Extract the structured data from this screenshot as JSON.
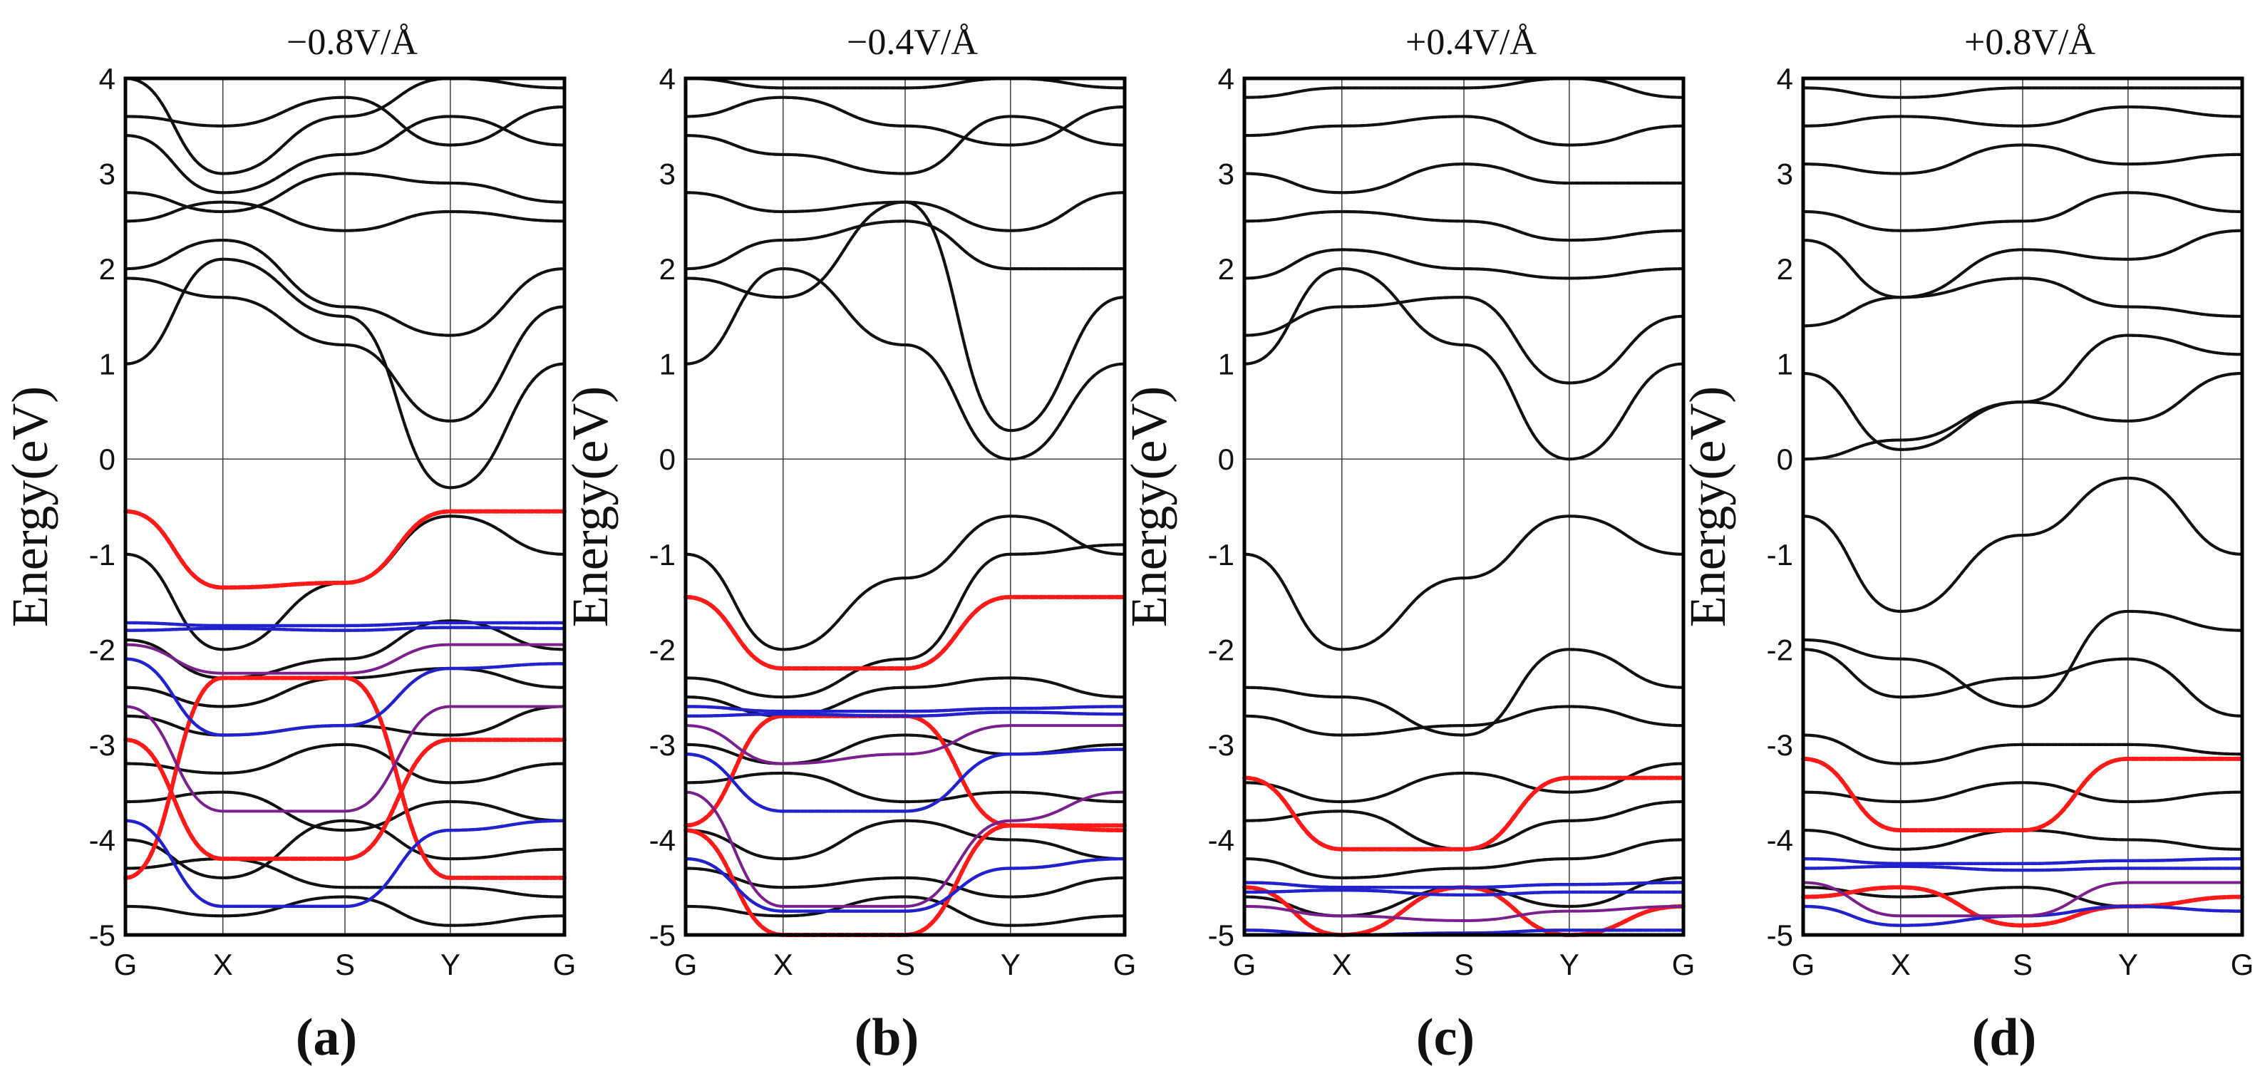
{
  "chart_data": [
    {
      "type": "line",
      "title": "−0.8V/Å",
      "label": "(a)",
      "ylabel": "Energy(eV)",
      "ylim": [
        -5,
        4
      ],
      "yticks": [
        4,
        3,
        2,
        1,
        0,
        -1,
        -2,
        -3,
        -4,
        -5
      ],
      "xticks": [
        "G",
        "X",
        "S",
        "Y",
        "G"
      ],
      "grid": true,
      "series": [
        {
          "color": "black",
          "y": [
            -1.0,
            -2.0,
            -1.3,
            -0.6,
            -1.0
          ]
        },
        {
          "color": "black",
          "y": [
            -1.9,
            -2.3,
            -2.1,
            -1.7,
            -2.0
          ]
        },
        {
          "color": "black",
          "y": [
            -2.4,
            -2.6,
            -2.3,
            -2.2,
            -2.4
          ]
        },
        {
          "color": "black",
          "y": [
            -2.7,
            -2.9,
            -2.8,
            -2.9,
            -2.6
          ]
        },
        {
          "color": "black",
          "y": [
            -3.2,
            -3.3,
            -3.0,
            -3.4,
            -3.2
          ]
        },
        {
          "color": "black",
          "y": [
            -3.6,
            -3.5,
            -3.9,
            -3.6,
            -3.8
          ]
        },
        {
          "color": "black",
          "y": [
            -4.0,
            -4.4,
            -3.8,
            -4.2,
            -4.1
          ]
        },
        {
          "color": "black",
          "y": [
            -4.3,
            -4.2,
            -4.5,
            -4.5,
            -4.6
          ]
        },
        {
          "color": "black",
          "y": [
            -4.7,
            -4.8,
            -4.6,
            -4.9,
            -4.8
          ]
        },
        {
          "color": "black",
          "y": [
            1.0,
            2.1,
            1.5,
            -0.3,
            1.0
          ]
        },
        {
          "color": "black",
          "y": [
            1.9,
            1.7,
            1.2,
            0.4,
            1.6
          ]
        },
        {
          "color": "black",
          "y": [
            2.0,
            2.3,
            1.6,
            1.3,
            2.0
          ]
        },
        {
          "color": "black",
          "y": [
            2.5,
            2.7,
            2.4,
            2.6,
            2.5
          ]
        },
        {
          "color": "black",
          "y": [
            2.8,
            2.6,
            3.0,
            2.9,
            2.7
          ]
        },
        {
          "color": "black",
          "y": [
            3.4,
            2.8,
            3.2,
            3.6,
            3.3
          ]
        },
        {
          "color": "black",
          "y": [
            3.6,
            3.5,
            3.8,
            3.3,
            3.7
          ]
        },
        {
          "color": "black",
          "y": [
            4.0,
            3.0,
            3.6,
            4.0,
            3.9
          ]
        },
        {
          "color": "red",
          "y": [
            -0.55,
            -1.35,
            -1.3,
            -0.55,
            -0.55
          ]
        },
        {
          "color": "red",
          "y": [
            -2.95,
            -4.2,
            -4.2,
            -2.95,
            -2.95
          ]
        },
        {
          "color": "red",
          "y": [
            -4.4,
            -2.3,
            -2.3,
            -4.4,
            -4.4
          ]
        },
        {
          "color": "blue",
          "y": [
            -1.72,
            -1.75,
            -1.75,
            -1.72,
            -1.72
          ]
        },
        {
          "color": "blue",
          "y": [
            -1.8,
            -1.78,
            -1.8,
            -1.77,
            -1.78
          ]
        },
        {
          "color": "blue",
          "y": [
            -2.1,
            -2.9,
            -2.8,
            -2.2,
            -2.15
          ]
        },
        {
          "color": "blue",
          "y": [
            -3.8,
            -4.7,
            -4.7,
            -3.9,
            -3.8
          ]
        },
        {
          "color": "purple",
          "y": [
            -1.95,
            -2.25,
            -2.25,
            -1.95,
            -1.95
          ]
        },
        {
          "color": "purple",
          "y": [
            -2.6,
            -3.7,
            -3.7,
            -2.6,
            -2.6
          ]
        }
      ]
    },
    {
      "type": "line",
      "title": "−0.4V/Å",
      "label": "(b)",
      "ylabel": "Energy(eV)",
      "ylim": [
        -5,
        4
      ],
      "yticks": [
        4,
        3,
        2,
        1,
        0,
        -1,
        -2,
        -3,
        -4,
        -5
      ],
      "xticks": [
        "G",
        "X",
        "S",
        "Y",
        "G"
      ],
      "grid": true,
      "series": [
        {
          "color": "black",
          "y": [
            -1.0,
            -2.0,
            -1.25,
            -0.6,
            -1.0
          ]
        },
        {
          "color": "black",
          "y": [
            -2.3,
            -2.5,
            -2.1,
            -1.0,
            -0.9
          ]
        },
        {
          "color": "black",
          "y": [
            -2.5,
            -2.7,
            -2.4,
            -2.3,
            -2.5
          ]
        },
        {
          "color": "black",
          "y": [
            -3.0,
            -3.2,
            -2.9,
            -3.1,
            -3.0
          ]
        },
        {
          "color": "black",
          "y": [
            -3.4,
            -3.3,
            -3.6,
            -3.5,
            -3.6
          ]
        },
        {
          "color": "black",
          "y": [
            -3.9,
            -4.2,
            -3.8,
            -4.0,
            -4.2
          ]
        },
        {
          "color": "black",
          "y": [
            -4.3,
            -4.5,
            -4.4,
            -4.6,
            -4.4
          ]
        },
        {
          "color": "black",
          "y": [
            -4.7,
            -4.8,
            -4.6,
            -4.9,
            -4.8
          ]
        },
        {
          "color": "black",
          "y": [
            1.0,
            2.0,
            1.2,
            0.0,
            1.0
          ]
        },
        {
          "color": "black",
          "y": [
            1.9,
            1.7,
            2.7,
            0.3,
            1.7
          ]
        },
        {
          "color": "black",
          "y": [
            2.0,
            2.3,
            2.5,
            2.0,
            2.0
          ]
        },
        {
          "color": "black",
          "y": [
            2.8,
            2.6,
            2.7,
            2.4,
            2.8
          ]
        },
        {
          "color": "black",
          "y": [
            3.4,
            3.2,
            3.0,
            3.6,
            3.3
          ]
        },
        {
          "color": "black",
          "y": [
            3.6,
            3.8,
            3.5,
            3.3,
            3.7
          ]
        },
        {
          "color": "black",
          "y": [
            4.0,
            3.9,
            3.9,
            4.0,
            3.9
          ]
        },
        {
          "color": "red",
          "y": [
            -1.45,
            -2.2,
            -2.2,
            -1.45,
            -1.45
          ]
        },
        {
          "color": "red",
          "y": [
            -3.85,
            -2.7,
            -2.7,
            -3.85,
            -3.85
          ]
        },
        {
          "color": "red",
          "y": [
            -3.9,
            -5.0,
            -5.0,
            -3.85,
            -3.9
          ]
        },
        {
          "color": "blue",
          "y": [
            -2.6,
            -2.65,
            -2.65,
            -2.62,
            -2.6
          ]
        },
        {
          "color": "blue",
          "y": [
            -2.7,
            -2.68,
            -2.7,
            -2.66,
            -2.68
          ]
        },
        {
          "color": "blue",
          "y": [
            -3.1,
            -3.7,
            -3.7,
            -3.1,
            -3.05
          ]
        },
        {
          "color": "blue",
          "y": [
            -4.2,
            -4.75,
            -4.75,
            -4.3,
            -4.2
          ]
        },
        {
          "color": "purple",
          "y": [
            -2.8,
            -3.2,
            -3.1,
            -2.8,
            -2.8
          ]
        },
        {
          "color": "purple",
          "y": [
            -3.5,
            -4.7,
            -4.7,
            -3.8,
            -3.5
          ]
        }
      ]
    },
    {
      "type": "line",
      "title": "+0.4V/Å",
      "label": "(c)",
      "ylabel": "Energy(eV)",
      "ylim": [
        -5,
        4
      ],
      "yticks": [
        4,
        3,
        2,
        1,
        0,
        -1,
        -2,
        -3,
        -4,
        -5
      ],
      "xticks": [
        "G",
        "X",
        "S",
        "Y",
        "G"
      ],
      "grid": true,
      "series": [
        {
          "color": "black",
          "y": [
            -1.0,
            -2.0,
            -1.25,
            -0.6,
            -1.0
          ]
        },
        {
          "color": "black",
          "y": [
            -2.4,
            -2.5,
            -2.9,
            -2.0,
            -2.4
          ]
        },
        {
          "color": "black",
          "y": [
            -2.7,
            -2.9,
            -2.8,
            -2.6,
            -2.8
          ]
        },
        {
          "color": "black",
          "y": [
            -3.4,
            -3.6,
            -3.3,
            -3.5,
            -3.2
          ]
        },
        {
          "color": "black",
          "y": [
            -3.8,
            -3.7,
            -4.1,
            -3.8,
            -3.6
          ]
        },
        {
          "color": "black",
          "y": [
            -4.2,
            -4.4,
            -4.3,
            -4.2,
            -4.0
          ]
        },
        {
          "color": "black",
          "y": [
            -4.6,
            -4.8,
            -4.5,
            -4.7,
            -4.4
          ]
        },
        {
          "color": "black",
          "y": [
            1.0,
            2.0,
            1.2,
            0.0,
            1.0
          ]
        },
        {
          "color": "black",
          "y": [
            1.3,
            1.6,
            1.7,
            0.8,
            1.5
          ]
        },
        {
          "color": "black",
          "y": [
            1.9,
            2.2,
            2.0,
            1.9,
            2.0
          ]
        },
        {
          "color": "black",
          "y": [
            2.5,
            2.6,
            2.5,
            2.3,
            2.4
          ]
        },
        {
          "color": "black",
          "y": [
            3.0,
            2.8,
            3.1,
            2.9,
            2.9
          ]
        },
        {
          "color": "black",
          "y": [
            3.4,
            3.5,
            3.6,
            3.3,
            3.5
          ]
        },
        {
          "color": "black",
          "y": [
            3.8,
            3.9,
            3.9,
            4.0,
            3.8
          ]
        },
        {
          "color": "red",
          "y": [
            -3.35,
            -4.1,
            -4.1,
            -3.35,
            -3.35
          ]
        },
        {
          "color": "red",
          "y": [
            -4.5,
            -5.0,
            -4.5,
            -5.0,
            -4.7
          ]
        },
        {
          "color": "blue",
          "y": [
            -4.45,
            -4.5,
            -4.5,
            -4.47,
            -4.45
          ]
        },
        {
          "color": "blue",
          "y": [
            -4.55,
            -4.53,
            -4.58,
            -4.55,
            -4.55
          ]
        },
        {
          "color": "blue",
          "y": [
            -4.95,
            -5.0,
            -4.98,
            -4.95,
            -4.95
          ]
        },
        {
          "color": "purple",
          "y": [
            -4.7,
            -4.8,
            -4.85,
            -4.75,
            -4.7
          ]
        }
      ]
    },
    {
      "type": "line",
      "title": "+0.8V/Å",
      "label": "(d)",
      "ylabel": "Energy(eV)",
      "ylim": [
        -5,
        4
      ],
      "yticks": [
        4,
        3,
        2,
        1,
        0,
        -1,
        -2,
        -3,
        -4,
        -5
      ],
      "xticks": [
        "G",
        "X",
        "S",
        "Y",
        "G"
      ],
      "grid": true,
      "series": [
        {
          "color": "black",
          "y": [
            -0.6,
            -1.6,
            -0.8,
            -0.2,
            -1.0
          ]
        },
        {
          "color": "black",
          "y": [
            -1.9,
            -2.1,
            -2.6,
            -1.6,
            -1.8
          ]
        },
        {
          "color": "black",
          "y": [
            -2.0,
            -2.5,
            -2.3,
            -2.1,
            -2.7
          ]
        },
        {
          "color": "black",
          "y": [
            -2.9,
            -3.2,
            -3.0,
            -3.0,
            -3.1
          ]
        },
        {
          "color": "black",
          "y": [
            -3.5,
            -3.6,
            -3.4,
            -3.6,
            -3.5
          ]
        },
        {
          "color": "black",
          "y": [
            -3.9,
            -4.1,
            -3.9,
            -4.0,
            -4.1
          ]
        },
        {
          "color": "black",
          "y": [
            -4.5,
            -4.6,
            -4.5,
            -4.7,
            -4.6
          ]
        },
        {
          "color": "black",
          "y": [
            0.0,
            0.2,
            0.6,
            0.4,
            0.9
          ]
        },
        {
          "color": "black",
          "y": [
            0.9,
            0.1,
            0.6,
            1.3,
            1.1
          ]
        },
        {
          "color": "black",
          "y": [
            1.4,
            1.7,
            1.9,
            1.6,
            1.5
          ]
        },
        {
          "color": "black",
          "y": [
            2.3,
            1.7,
            2.2,
            2.1,
            2.4
          ]
        },
        {
          "color": "black",
          "y": [
            2.6,
            2.4,
            2.5,
            2.8,
            2.6
          ]
        },
        {
          "color": "black",
          "y": [
            3.1,
            3.0,
            3.3,
            3.1,
            3.2
          ]
        },
        {
          "color": "black",
          "y": [
            3.5,
            3.6,
            3.5,
            3.7,
            3.6
          ]
        },
        {
          "color": "black",
          "y": [
            3.9,
            3.8,
            3.9,
            3.9,
            3.9
          ]
        },
        {
          "color": "red",
          "y": [
            -3.15,
            -3.9,
            -3.9,
            -3.15,
            -3.15
          ]
        },
        {
          "color": "red",
          "y": [
            -4.6,
            -4.5,
            -4.9,
            -4.7,
            -4.6
          ]
        },
        {
          "color": "blue",
          "y": [
            -4.2,
            -4.25,
            -4.25,
            -4.22,
            -4.2
          ]
        },
        {
          "color": "blue",
          "y": [
            -4.3,
            -4.28,
            -4.32,
            -4.3,
            -4.3
          ]
        },
        {
          "color": "blue",
          "y": [
            -4.7,
            -4.9,
            -4.8,
            -4.7,
            -4.75
          ]
        },
        {
          "color": "purple",
          "y": [
            -4.45,
            -4.8,
            -4.8,
            -4.45,
            -4.45
          ]
        }
      ]
    }
  ]
}
